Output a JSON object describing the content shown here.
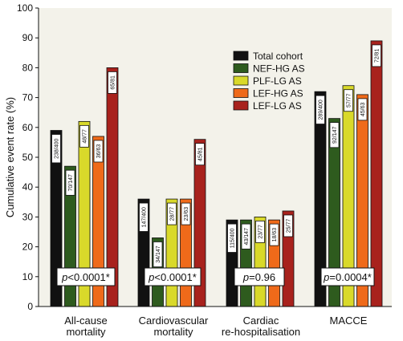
{
  "chart_data": {
    "type": "bar",
    "ylabel": "Cumulative event rate (%)",
    "ylim": [
      0,
      100
    ],
    "yticks": [
      0,
      10,
      20,
      30,
      40,
      50,
      60,
      70,
      80,
      90,
      100
    ],
    "categories": [
      [
        "All-cause",
        "mortality"
      ],
      [
        "Cardiovascular",
        "mortality"
      ],
      [
        "Cardiac",
        "re-hospitalisation"
      ],
      [
        "MACCE"
      ]
    ],
    "series": [
      {
        "name": "Total cohort",
        "color": "#111111",
        "values": [
          59,
          36,
          29,
          72
        ],
        "labels": [
          "238/400",
          "147/400",
          "115/400",
          "289/400"
        ]
      },
      {
        "name": "NEF-HG AS",
        "color": "#2e5b1e",
        "values": [
          47,
          23,
          29,
          63
        ],
        "labels": [
          "70/147",
          "34/147",
          "43/147",
          "92/147"
        ]
      },
      {
        "name": "PLF-LG AS",
        "color": "#d9d92a",
        "values": [
          62,
          36,
          30,
          74
        ],
        "labels": [
          "48/77",
          "28/77",
          "23/77",
          "57/77"
        ]
      },
      {
        "name": "LEF-HG AS",
        "color": "#ef6a1a",
        "values": [
          57,
          36,
          29,
          71
        ],
        "labels": [
          "36/63",
          "23/63",
          "18/63",
          "45/63"
        ]
      },
      {
        "name": "LEF-LG AS",
        "color": "#a8221d",
        "values": [
          80,
          56,
          32,
          89
        ],
        "labels": [
          "65/81",
          "45/81",
          "25/77",
          "72/81"
        ]
      }
    ],
    "pvalues": [
      {
        "p": "p",
        "rest": "<0.0001*"
      },
      {
        "p": "p",
        "rest": "<0.0001*"
      },
      {
        "p": "p",
        "rest": "=0.96"
      },
      {
        "p": "p",
        "rest": "=0.0004*"
      }
    ],
    "grid": false,
    "legend_position": "top-right"
  }
}
